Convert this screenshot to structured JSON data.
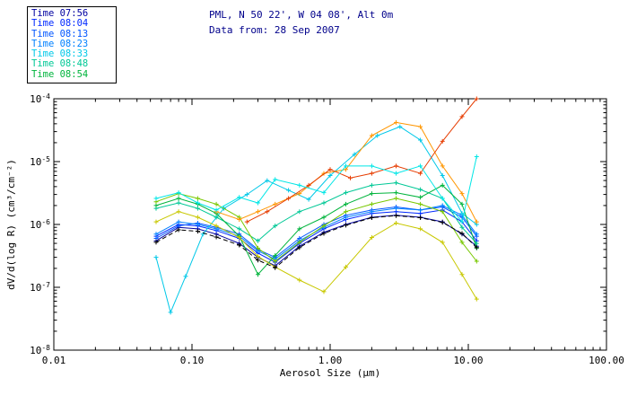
{
  "header": {
    "title": "PML, N 50 22', W 04 08', Alt 0m",
    "subtitle": "Data from: 28 Sep 2007",
    "color": "#00008b"
  },
  "legend": {
    "items": [
      {
        "label": "Time 07:56",
        "color": "#0000a0"
      },
      {
        "label": "Time 08:04",
        "color": "#0028ff"
      },
      {
        "label": "Time 08:13",
        "color": "#0055ff"
      },
      {
        "label": "Time 08:23",
        "color": "#0080ff"
      },
      {
        "label": "Time 08:33",
        "color": "#00c8e8"
      },
      {
        "label": "Time 08:48",
        "color": "#00c896"
      },
      {
        "label": "Time 08:54",
        "color": "#00b43c"
      }
    ]
  },
  "chart_data": {
    "type": "line",
    "x_scale": "log",
    "y_scale": "log",
    "xlim": [
      0.01,
      100
    ],
    "ylim": [
      1e-08,
      0.0001
    ],
    "xlabel": "Aerosol Size (μm)",
    "ylabel": "dV/d(log R) (cm³/cm⁻²)",
    "x_ticks": {
      "values": [
        0.01,
        0.1,
        1,
        10,
        100
      ],
      "labels": [
        "0.01",
        "0.10",
        "1.00",
        "10.00",
        "100.00"
      ]
    },
    "y_ticks": {
      "values": [
        0.0001,
        1e-05,
        1e-06,
        1e-07,
        1e-08
      ],
      "exponents": [
        "-4",
        "-5",
        "-6",
        "-7",
        "-8"
      ]
    },
    "marker": "plus",
    "grid": false,
    "legend_position": "top-left",
    "series": [
      {
        "label": "Time 07:56",
        "color": "#0000a0",
        "dash": false,
        "points": [
          [
            0.055,
            5.5e-07
          ],
          [
            0.08,
            9e-07
          ],
          [
            0.11,
            8.5e-07
          ],
          [
            0.15,
            7e-07
          ],
          [
            0.22,
            5e-07
          ],
          [
            0.3,
            3e-07
          ],
          [
            0.4,
            2.2e-07
          ],
          [
            0.6,
            4.5e-07
          ],
          [
            0.9,
            7.5e-07
          ],
          [
            1.3,
            1e-06
          ],
          [
            2.0,
            1.3e-06
          ],
          [
            3.0,
            1.4e-06
          ],
          [
            4.5,
            1.3e-06
          ],
          [
            6.5,
            1.1e-06
          ],
          [
            9.0,
            7e-07
          ],
          [
            11.5,
            4.5e-07
          ]
        ]
      },
      {
        "label": "Time 08:04",
        "color": "#0028ff",
        "dash": false,
        "points": [
          [
            0.055,
            6.5e-07
          ],
          [
            0.08,
            1e-06
          ],
          [
            0.11,
            9.5e-07
          ],
          [
            0.15,
            8e-07
          ],
          [
            0.22,
            6e-07
          ],
          [
            0.3,
            3.5e-07
          ],
          [
            0.4,
            2.5e-07
          ],
          [
            0.6,
            5e-07
          ],
          [
            0.9,
            8.5e-07
          ],
          [
            1.3,
            1.2e-06
          ],
          [
            2.0,
            1.5e-06
          ],
          [
            3.0,
            1.6e-06
          ],
          [
            4.5,
            1.5e-06
          ],
          [
            6.5,
            1.7e-06
          ],
          [
            9.0,
            1.1e-06
          ],
          [
            11.5,
            5.5e-07
          ]
        ]
      },
      {
        "label": "Time 08:13",
        "color": "#0055ff",
        "dash": false,
        "points": [
          [
            0.055,
            6e-07
          ],
          [
            0.08,
            9.5e-07
          ],
          [
            0.11,
            1.05e-06
          ],
          [
            0.15,
            9e-07
          ],
          [
            0.22,
            7e-07
          ],
          [
            0.3,
            4e-07
          ],
          [
            0.4,
            3e-07
          ],
          [
            0.6,
            6e-07
          ],
          [
            0.9,
            1e-06
          ],
          [
            1.3,
            1.4e-06
          ],
          [
            2.0,
            1.7e-06
          ],
          [
            3.0,
            1.9e-06
          ],
          [
            4.5,
            1.7e-06
          ],
          [
            6.5,
            1.9e-06
          ],
          [
            9.0,
            1.3e-06
          ],
          [
            11.5,
            6.5e-07
          ]
        ]
      },
      {
        "label": "Time 08:23",
        "color": "#0080ff",
        "dash": false,
        "points": [
          [
            0.055,
            7e-07
          ],
          [
            0.08,
            1.1e-06
          ],
          [
            0.11,
            1e-06
          ],
          [
            0.15,
            8.5e-07
          ],
          [
            0.22,
            6.5e-07
          ],
          [
            0.3,
            3.8e-07
          ],
          [
            0.4,
            2.8e-07
          ],
          [
            0.6,
            5.5e-07
          ],
          [
            0.9,
            9e-07
          ],
          [
            1.3,
            1.3e-06
          ],
          [
            2.0,
            1.6e-06
          ],
          [
            3.0,
            1.8e-06
          ],
          [
            4.5,
            1.7e-06
          ],
          [
            6.5,
            2e-06
          ],
          [
            9.0,
            1.4e-06
          ],
          [
            11.5,
            7e-07
          ]
        ]
      },
      {
        "label": "Time 08:33",
        "color": "#00c8e8",
        "dash": false,
        "points": [
          [
            0.055,
            3e-07
          ],
          [
            0.07,
            4e-08
          ],
          [
            0.09,
            1.5e-07
          ],
          [
            0.12,
            7e-07
          ],
          [
            0.17,
            1.8e-06
          ],
          [
            0.25,
            3e-06
          ],
          [
            0.35,
            5e-06
          ],
          [
            0.5,
            3.5e-06
          ],
          [
            0.7,
            2.5e-06
          ],
          [
            1.0,
            6e-06
          ],
          [
            1.5,
            1.3e-05
          ],
          [
            2.2,
            2.6e-05
          ],
          [
            3.2,
            3.6e-05
          ],
          [
            4.5,
            2.2e-05
          ],
          [
            6.5,
            6e-06
          ],
          [
            9.0,
            1.5e-06
          ],
          [
            11.5,
            1e-06
          ]
        ]
      },
      {
        "label": "Time 08:48",
        "color": "#00c896",
        "dash": false,
        "points": [
          [
            0.055,
            1.8e-06
          ],
          [
            0.08,
            2.2e-06
          ],
          [
            0.11,
            1.8e-06
          ],
          [
            0.15,
            1.3e-06
          ],
          [
            0.22,
            8.5e-07
          ],
          [
            0.3,
            5.5e-07
          ],
          [
            0.4,
            9.5e-07
          ],
          [
            0.6,
            1.6e-06
          ],
          [
            0.9,
            2.2e-06
          ],
          [
            1.3,
            3.2e-06
          ],
          [
            2.0,
            4.2e-06
          ],
          [
            3.0,
            4.6e-06
          ],
          [
            4.5,
            3.6e-06
          ],
          [
            6.5,
            2.6e-06
          ],
          [
            9.0,
            9e-07
          ],
          [
            11.5,
            5e-07
          ]
        ]
      },
      {
        "label": "Time 08:54",
        "color": "#00b43c",
        "dash": false,
        "points": [
          [
            0.055,
            2e-06
          ],
          [
            0.08,
            2.6e-06
          ],
          [
            0.11,
            2.1e-06
          ],
          [
            0.15,
            1.5e-06
          ],
          [
            0.22,
            6.5e-07
          ],
          [
            0.3,
            1.6e-07
          ],
          [
            0.4,
            3.2e-07
          ],
          [
            0.6,
            8.5e-07
          ],
          [
            0.9,
            1.3e-06
          ],
          [
            1.3,
            2.1e-06
          ],
          [
            2.0,
            3.1e-06
          ],
          [
            3.0,
            3.2e-06
          ],
          [
            4.5,
            2.7e-06
          ],
          [
            6.5,
            4.2e-06
          ],
          [
            9.0,
            2.1e-06
          ],
          [
            11.5,
            4.2e-07
          ]
        ]
      },
      {
        "label": "",
        "color": "#78c800",
        "dash": false,
        "points": [
          [
            0.055,
            2.3e-06
          ],
          [
            0.08,
            3.1e-06
          ],
          [
            0.11,
            2.6e-06
          ],
          [
            0.15,
            2.1e-06
          ],
          [
            0.22,
            1.3e-06
          ],
          [
            0.3,
            4.2e-07
          ],
          [
            0.4,
            2.6e-07
          ],
          [
            0.6,
            5.2e-07
          ],
          [
            0.9,
            9.5e-07
          ],
          [
            1.3,
            1.6e-06
          ],
          [
            2.0,
            2.1e-06
          ],
          [
            3.0,
            2.6e-06
          ],
          [
            4.5,
            2.1e-06
          ],
          [
            6.5,
            1.6e-06
          ],
          [
            9.0,
            5.2e-07
          ],
          [
            11.5,
            2.6e-07
          ]
        ]
      },
      {
        "label": "",
        "color": "#c8c800",
        "dash": false,
        "points": [
          [
            0.055,
            1.1e-06
          ],
          [
            0.08,
            1.6e-06
          ],
          [
            0.11,
            1.3e-06
          ],
          [
            0.15,
            9.5e-07
          ],
          [
            0.22,
            6.2e-07
          ],
          [
            0.3,
            3.1e-07
          ],
          [
            0.4,
            2.1e-07
          ],
          [
            0.6,
            1.3e-07
          ],
          [
            0.9,
            8.5e-08
          ],
          [
            1.3,
            2.1e-07
          ],
          [
            2.0,
            6.2e-07
          ],
          [
            3.0,
            1.05e-06
          ],
          [
            4.5,
            8.5e-07
          ],
          [
            6.5,
            5.2e-07
          ],
          [
            9.0,
            1.6e-07
          ],
          [
            11.5,
            6.5e-08
          ]
        ]
      },
      {
        "label": "",
        "color": "#ff9600",
        "dash": false,
        "points": [
          [
            0.15,
            1.6e-06
          ],
          [
            0.22,
            1.2e-06
          ],
          [
            0.3,
            1.6e-06
          ],
          [
            0.4,
            2.1e-06
          ],
          [
            0.6,
            3.1e-06
          ],
          [
            0.9,
            6.5e-06
          ],
          [
            1.3,
            7.5e-06
          ],
          [
            2.0,
            2.6e-05
          ],
          [
            3.0,
            4.2e-05
          ],
          [
            4.5,
            3.6e-05
          ],
          [
            6.5,
            8.5e-06
          ],
          [
            9.0,
            3.1e-06
          ],
          [
            11.5,
            1.1e-06
          ]
        ]
      },
      {
        "label": "",
        "color": "#e63c00",
        "dash": false,
        "points": [
          [
            0.25,
            1.1e-06
          ],
          [
            0.35,
            1.6e-06
          ],
          [
            0.5,
            2.6e-06
          ],
          [
            0.7,
            4.2e-06
          ],
          [
            1.0,
            7.5e-06
          ],
          [
            1.4,
            5.5e-06
          ],
          [
            2.0,
            6.5e-06
          ],
          [
            3.0,
            8.5e-06
          ],
          [
            4.5,
            6.5e-06
          ],
          [
            6.5,
            2.1e-05
          ],
          [
            9.0,
            5.2e-05
          ],
          [
            11.5,
            0.0001
          ]
        ]
      },
      {
        "label": "",
        "color": "#000000",
        "dash": true,
        "points": [
          [
            0.055,
            5.2e-07
          ],
          [
            0.08,
            8.2e-07
          ],
          [
            0.11,
            7.8e-07
          ],
          [
            0.15,
            6.3e-07
          ],
          [
            0.22,
            4.7e-07
          ],
          [
            0.3,
            2.7e-07
          ],
          [
            0.4,
            2.05e-07
          ],
          [
            0.6,
            4.3e-07
          ],
          [
            0.9,
            7.2e-07
          ],
          [
            1.3,
            9.7e-07
          ],
          [
            2.0,
            1.28e-06
          ],
          [
            3.0,
            1.38e-06
          ],
          [
            4.5,
            1.28e-06
          ],
          [
            6.5,
            1.08e-06
          ],
          [
            9.0,
            7.2e-07
          ],
          [
            11.5,
            4.3e-07
          ]
        ]
      },
      {
        "label": "",
        "color": "#00e6e6",
        "dash": false,
        "points": [
          [
            0.055,
            2.6e-06
          ],
          [
            0.08,
            3.2e-06
          ],
          [
            0.11,
            2.2e-06
          ],
          [
            0.15,
            1.7e-06
          ],
          [
            0.22,
            2.7e-06
          ],
          [
            0.3,
            2.2e-06
          ],
          [
            0.4,
            5.2e-06
          ],
          [
            0.6,
            4.2e-06
          ],
          [
            0.9,
            3.2e-06
          ],
          [
            1.3,
            8.5e-06
          ],
          [
            2.0,
            8.5e-06
          ],
          [
            3.0,
            6.5e-06
          ],
          [
            4.5,
            8.5e-06
          ],
          [
            6.5,
            2.6e-06
          ],
          [
            9.0,
            1.1e-06
          ],
          [
            11.5,
            1.2e-05
          ]
        ]
      }
    ]
  }
}
